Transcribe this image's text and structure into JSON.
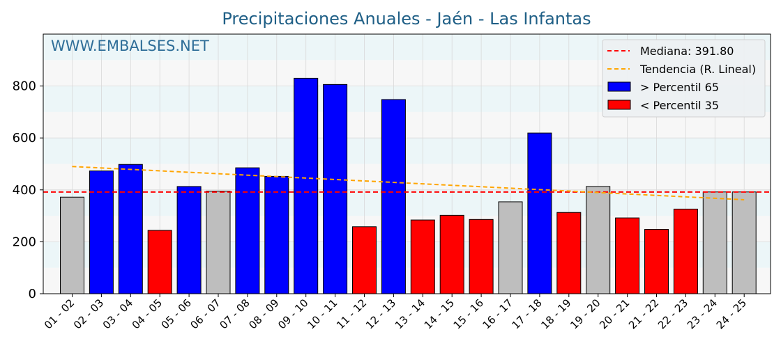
{
  "chart_data": {
    "type": "bar",
    "title": "Precipitaciones Anuales - Jaén - Las Infantas",
    "watermark": "WWW.EMBALSES.NET",
    "xlabel": "",
    "ylabel": "",
    "ylim": [
      0,
      1000
    ],
    "yticks": [
      0,
      200,
      400,
      600,
      800
    ],
    "categories": [
      "01 - 02",
      "02 - 03",
      "03 - 04",
      "04 - 05",
      "05 - 06",
      "06 - 07",
      "07 - 08",
      "08 - 09",
      "09 - 10",
      "10 - 11",
      "11 - 12",
      "12 - 13",
      "13 - 14",
      "14 - 15",
      "15 - 16",
      "16 - 17",
      "17 - 18",
      "18 - 19",
      "19 - 20",
      "20 - 21",
      "21 - 22",
      "22 - 23",
      "23 - 24",
      "24 - 25"
    ],
    "values": [
      372,
      473,
      498,
      244,
      413,
      395,
      485,
      452,
      830,
      806,
      258,
      748,
      284,
      302,
      286,
      354,
      619,
      313,
      413,
      292,
      248,
      326,
      392,
      392
    ],
    "classes": [
      "mid",
      "high",
      "high",
      "low",
      "high",
      "mid",
      "high",
      "high",
      "high",
      "high",
      "low",
      "high",
      "low",
      "low",
      "low",
      "mid",
      "high",
      "low",
      "mid",
      "low",
      "low",
      "low",
      "mid",
      "mid"
    ],
    "colors": {
      "high": "#0000ff",
      "low": "#ff0000",
      "mid": "#bebebe",
      "median": "#ff0000",
      "trend": "#ffa500"
    },
    "median": 391.8,
    "trend": {
      "start": 490,
      "end": 362
    },
    "legend": {
      "position": "top-right",
      "items": [
        {
          "label": "Mediana: 391.80",
          "kind": "dash",
          "color": "#ff0000"
        },
        {
          "label": "Tendencia (R. Lineal)",
          "kind": "dash",
          "color": "#ffa500"
        },
        {
          "label": " > Percentil 65",
          "kind": "patch",
          "color": "#0000ff"
        },
        {
          "label": " < Percentil 35",
          "kind": "patch",
          "color": "#ff0000"
        }
      ]
    }
  }
}
